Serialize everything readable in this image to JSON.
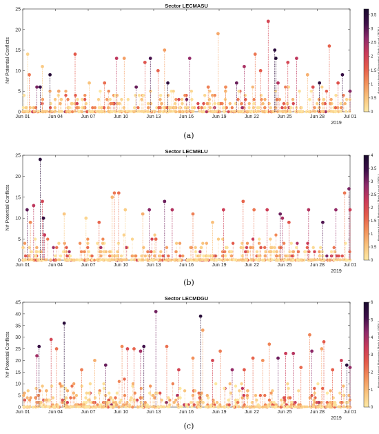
{
  "figure": {
    "colorbar_colors": [
      "#fde9a4",
      "#f9c27c",
      "#f28f5a",
      "#e45a4a",
      "#c93a5a",
      "#8e2a6a",
      "#3d0f48",
      "#1a0b2e"
    ]
  },
  "chart_data": [
    {
      "type": "scatter",
      "panel_label": "(a)",
      "title": "Sector LECMASU",
      "ylabel": "N# Potential Conflicts",
      "colorbar_label": "Accumulated Potential Risk Level (PRL)",
      "ylim": [
        0,
        25
      ],
      "yticks": [
        0,
        5,
        10,
        15,
        20,
        25
      ],
      "colorbar_lim": [
        0,
        3.7
      ],
      "colorbar_ticks": [
        "0",
        "0.5",
        "1",
        "1.5",
        "2",
        "2.5",
        "3",
        "3.5"
      ],
      "colorbar_tick_values": [
        0,
        0.5,
        1,
        1.5,
        2,
        2.5,
        3,
        3.5
      ],
      "xlim": [
        "2019-06-01",
        "2019-07-01"
      ],
      "xticks": [
        "Jun 01",
        "Jun 04",
        "Jun 07",
        "Jun 10",
        "Jun 13",
        "Jun 16",
        "Jun 19",
        "Jun 22",
        "Jun 25",
        "Jun 28",
        "Jul 01"
      ],
      "xtick_days": [
        0,
        3,
        6,
        9,
        12,
        15,
        18,
        21,
        24,
        27,
        30
      ],
      "year_label": "2019",
      "stems": true,
      "points": [
        {
          "day": 0.45,
          "y": 14,
          "c": 0.3
        },
        {
          "day": 0.6,
          "y": 9,
          "c": 1.3
        },
        {
          "day": 1.3,
          "y": 6,
          "c": 2.8
        },
        {
          "day": 1.6,
          "y": 6,
          "c": 3.3
        },
        {
          "day": 1.8,
          "y": 11,
          "c": 0.4
        },
        {
          "day": 2.5,
          "y": 9,
          "c": 3.5
        },
        {
          "day": 3.3,
          "y": 5,
          "c": 0.8
        },
        {
          "day": 4.8,
          "y": 14,
          "c": 1.6
        },
        {
          "day": 6.1,
          "y": 7,
          "c": 0.5
        },
        {
          "day": 7.5,
          "y": 7,
          "c": 1.4
        },
        {
          "day": 8.6,
          "y": 13,
          "c": 2.2
        },
        {
          "day": 9.3,
          "y": 13,
          "c": 0.9
        },
        {
          "day": 10.4,
          "y": 6,
          "c": 2.9
        },
        {
          "day": 11.2,
          "y": 12,
          "c": 1.7
        },
        {
          "day": 11.7,
          "y": 13,
          "c": 3.1
        },
        {
          "day": 12.4,
          "y": 10,
          "c": 1.5
        },
        {
          "day": 13.0,
          "y": 15,
          "c": 0.9
        },
        {
          "day": 13.3,
          "y": 7,
          "c": 3.4
        },
        {
          "day": 15.3,
          "y": 13,
          "c": 2.6
        },
        {
          "day": 17.0,
          "y": 6,
          "c": 1.2
        },
        {
          "day": 17.9,
          "y": 19,
          "c": 0.8
        },
        {
          "day": 18.6,
          "y": 6,
          "c": 1.1
        },
        {
          "day": 19.6,
          "y": 7,
          "c": 2.9
        },
        {
          "day": 20.3,
          "y": 11,
          "c": 2.4
        },
        {
          "day": 21.3,
          "y": 14,
          "c": 1.3
        },
        {
          "day": 21.8,
          "y": 10,
          "c": 1.6
        },
        {
          "day": 22.5,
          "y": 22,
          "c": 1.9
        },
        {
          "day": 23.1,
          "y": 15,
          "c": 3.4
        },
        {
          "day": 23.2,
          "y": 13,
          "c": 3.6
        },
        {
          "day": 23.4,
          "y": 7,
          "c": 2.3
        },
        {
          "day": 24.3,
          "y": 12,
          "c": 1.9
        },
        {
          "day": 25.1,
          "y": 13,
          "c": 2.2
        },
        {
          "day": 26.1,
          "y": 9,
          "c": 0.7
        },
        {
          "day": 26.6,
          "y": 6,
          "c": 1.8
        },
        {
          "day": 27.2,
          "y": 7,
          "c": 3.4
        },
        {
          "day": 28.1,
          "y": 16,
          "c": 1.5
        },
        {
          "day": 28.9,
          "y": 7,
          "c": 1.7
        },
        {
          "day": 29.3,
          "y": 9,
          "c": 3.3
        },
        {
          "day": 30.0,
          "y": 5,
          "c": 2.7
        }
      ]
    },
    {
      "type": "scatter",
      "panel_label": "(b)",
      "title": "Sector LECMBLU",
      "ylabel": "N# Potential Conflicts",
      "colorbar_label": "Accumulated Potential Risk Level (PRL)",
      "ylim": [
        0,
        25
      ],
      "yticks": [
        0,
        5,
        10,
        15,
        20,
        25
      ],
      "colorbar_lim": [
        0,
        4
      ],
      "colorbar_ticks": [
        "0",
        "0.5",
        "1",
        "1.5",
        "2",
        "2.5",
        "3",
        "3.5",
        "4"
      ],
      "colorbar_tick_values": [
        0,
        0.5,
        1,
        1.5,
        2,
        2.5,
        3,
        3.5,
        4
      ],
      "xlim": [
        "2019-06-01",
        "2019-07-01"
      ],
      "xticks": [
        "Jun 01",
        "Jun 04",
        "Jun 07",
        "Jun 10",
        "Jun 13",
        "Jun 16",
        "Jun 19",
        "Jun 22",
        "Jun 25",
        "Jun 28",
        "Jul 01"
      ],
      "xtick_days": [
        0,
        3,
        6,
        9,
        12,
        15,
        18,
        21,
        24,
        27,
        30
      ],
      "year_label": "2019",
      "stems": true,
      "points": [
        {
          "day": 0.4,
          "y": 12,
          "c": 3.2
        },
        {
          "day": 0.7,
          "y": 9,
          "c": 1.2
        },
        {
          "day": 1.0,
          "y": 13,
          "c": 2.4
        },
        {
          "day": 1.6,
          "y": 24,
          "c": 3.8
        },
        {
          "day": 1.8,
          "y": 14,
          "c": 2.1
        },
        {
          "day": 1.9,
          "y": 10,
          "c": 3.6
        },
        {
          "day": 2.0,
          "y": 6,
          "c": 2.3
        },
        {
          "day": 3.8,
          "y": 11,
          "c": 0.5
        },
        {
          "day": 5.8,
          "y": 10,
          "c": 0.3
        },
        {
          "day": 7.0,
          "y": 9,
          "c": 1.6
        },
        {
          "day": 8.2,
          "y": 15,
          "c": 0.7
        },
        {
          "day": 8.4,
          "y": 16,
          "c": 1.4
        },
        {
          "day": 8.8,
          "y": 16,
          "c": 1.5
        },
        {
          "day": 9.4,
          "y": 12,
          "c": 0.4
        },
        {
          "day": 11.0,
          "y": 11,
          "c": 0.8
        },
        {
          "day": 11.6,
          "y": 12,
          "c": 2.9
        },
        {
          "day": 12.2,
          "y": 5,
          "c": 1.6
        },
        {
          "day": 13.0,
          "y": 14,
          "c": 3.1
        },
        {
          "day": 13.7,
          "y": 12,
          "c": 2.5
        },
        {
          "day": 15.6,
          "y": 11,
          "c": 1.3
        },
        {
          "day": 17.4,
          "y": 9,
          "c": 0.6
        },
        {
          "day": 18.4,
          "y": 12,
          "c": 2.2
        },
        {
          "day": 20.2,
          "y": 14,
          "c": 1.6
        },
        {
          "day": 21.2,
          "y": 12,
          "c": 1.4
        },
        {
          "day": 22.4,
          "y": 12,
          "c": 2.2
        },
        {
          "day": 23.6,
          "y": 11,
          "c": 3.1
        },
        {
          "day": 23.8,
          "y": 10,
          "c": 2.6
        },
        {
          "day": 24.4,
          "y": 9,
          "c": 1.8
        },
        {
          "day": 26.2,
          "y": 12,
          "c": 2.5
        },
        {
          "day": 27.5,
          "y": 9,
          "c": 3.3
        },
        {
          "day": 28.7,
          "y": 12,
          "c": 2.8
        },
        {
          "day": 29.5,
          "y": 16,
          "c": 1.4
        },
        {
          "day": 29.9,
          "y": 17,
          "c": 3.0
        },
        {
          "day": 30.0,
          "y": 12,
          "c": 2.2
        }
      ]
    },
    {
      "type": "scatter",
      "panel_label": "(c)",
      "title": "Sector LECMDGU",
      "ylabel": "N# Potential Conflicts",
      "colorbar_label": "Accumulated Potential Risk Level (PRL)",
      "ylim": [
        0,
        45
      ],
      "yticks": [
        0,
        5,
        10,
        15,
        20,
        25,
        30,
        35,
        40,
        45
      ],
      "colorbar_lim": [
        0,
        6
      ],
      "colorbar_ticks": [
        "0",
        "1",
        "2",
        "3",
        "4",
        "5",
        "6"
      ],
      "colorbar_tick_values": [
        0,
        1,
        2,
        3,
        4,
        5,
        6
      ],
      "xlim": [
        "2019-06-01",
        "2019-07-01"
      ],
      "xticks": [
        "Jun 01",
        "Jun 04",
        "Jun 07",
        "Jun 10",
        "Jun 13",
        "Jun 16",
        "Jun 19",
        "Jun 22",
        "Jun 25",
        "Jun 28",
        "Jul 01"
      ],
      "xtick_days": [
        0,
        3,
        6,
        9,
        12,
        15,
        18,
        21,
        24,
        27,
        30
      ],
      "year_label": "2019",
      "stems": true,
      "points": [
        {
          "day": 1.3,
          "y": 22,
          "c": 4.0
        },
        {
          "day": 1.5,
          "y": 26,
          "c": 5.3
        },
        {
          "day": 2.6,
          "y": 29,
          "c": 3.1
        },
        {
          "day": 3.1,
          "y": 25,
          "c": 2.2
        },
        {
          "day": 3.8,
          "y": 36,
          "c": 5.6
        },
        {
          "day": 5.4,
          "y": 16,
          "c": 2.0
        },
        {
          "day": 6.6,
          "y": 20,
          "c": 1.2
        },
        {
          "day": 7.6,
          "y": 18,
          "c": 4.7
        },
        {
          "day": 9.1,
          "y": 26,
          "c": 1.8
        },
        {
          "day": 9.6,
          "y": 25,
          "c": 3.0
        },
        {
          "day": 10.2,
          "y": 25,
          "c": 2.4
        },
        {
          "day": 10.8,
          "y": 24,
          "c": 4.0
        },
        {
          "day": 11.1,
          "y": 26,
          "c": 5.1
        },
        {
          "day": 12.2,
          "y": 41,
          "c": 4.6
        },
        {
          "day": 13.2,
          "y": 26,
          "c": 2.2
        },
        {
          "day": 14.3,
          "y": 16,
          "c": 3.1
        },
        {
          "day": 15.6,
          "y": 21,
          "c": 1.7
        },
        {
          "day": 16.3,
          "y": 39,
          "c": 5.7
        },
        {
          "day": 16.5,
          "y": 33,
          "c": 1.4
        },
        {
          "day": 17.4,
          "y": 20,
          "c": 3.1
        },
        {
          "day": 18.1,
          "y": 24,
          "c": 2.0
        },
        {
          "day": 19.2,
          "y": 16,
          "c": 4.2
        },
        {
          "day": 20.3,
          "y": 16,
          "c": 2.6
        },
        {
          "day": 21.1,
          "y": 21,
          "c": 2.4
        },
        {
          "day": 22.0,
          "y": 20,
          "c": 1.7
        },
        {
          "day": 22.6,
          "y": 27,
          "c": 1.9
        },
        {
          "day": 23.4,
          "y": 21,
          "c": 4.6
        },
        {
          "day": 24.1,
          "y": 23,
          "c": 3.4
        },
        {
          "day": 24.8,
          "y": 23,
          "c": 3.7
        },
        {
          "day": 25.5,
          "y": 17,
          "c": 2.3
        },
        {
          "day": 26.3,
          "y": 31,
          "c": 1.9
        },
        {
          "day": 26.5,
          "y": 24,
          "c": 4.3
        },
        {
          "day": 27.4,
          "y": 25,
          "c": 1.4
        },
        {
          "day": 27.6,
          "y": 28,
          "c": 2.6
        },
        {
          "day": 28.4,
          "y": 16,
          "c": 2.5
        },
        {
          "day": 29.2,
          "y": 20,
          "c": 3.3
        },
        {
          "day": 29.7,
          "y": 18,
          "c": 5.6
        },
        {
          "day": 30.0,
          "y": 17,
          "c": 4.2
        }
      ]
    }
  ]
}
